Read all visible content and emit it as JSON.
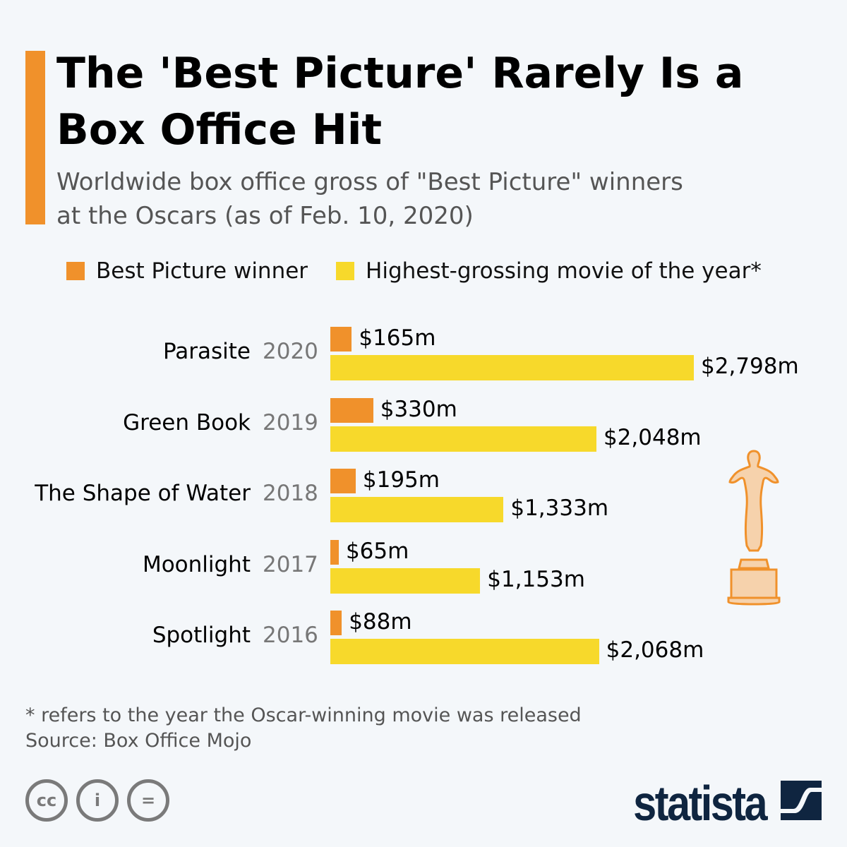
{
  "title": "The 'Best Picture' Rarely Is a Box Office Hit",
  "subtitle": "Worldwide box office gross of \"Best Picture\" winners at the Oscars (as of Feb. 10, 2020)",
  "legend": {
    "winner": "Best Picture winner",
    "highest": "Highest-grossing movie of the year*"
  },
  "footnote": "* refers to the year the Oscar-winning movie was released",
  "source": "Source: Box Office Mojo",
  "brand": "statista",
  "colors": {
    "winner": "#f0912b",
    "highest": "#f7d92b",
    "accent": "#f0912b",
    "brand": "#0f2540"
  },
  "chart_data": {
    "type": "bar",
    "orientation": "horizontal",
    "title": "The 'Best Picture' Rarely Is a Box Office Hit",
    "unit": "million USD",
    "categories": [
      "Parasite",
      "Green Book",
      "The Shape of Water",
      "Moonlight",
      "Spotlight"
    ],
    "years": [
      "2020",
      "2019",
      "2018",
      "2017",
      "2016"
    ],
    "series": [
      {
        "name": "Best Picture winner",
        "values": [
          165,
          330,
          195,
          65,
          88
        ],
        "labels": [
          "$165m",
          "$330m",
          "$195m",
          "$65m",
          "$88m"
        ]
      },
      {
        "name": "Highest-grossing movie of the year*",
        "values": [
          2798,
          2048,
          1333,
          1153,
          2068
        ],
        "labels": [
          "$2,798m",
          "$2,048m",
          "$1,333m",
          "$1,153m",
          "$2,068m"
        ]
      }
    ],
    "xlim": [
      0,
      2798
    ]
  }
}
